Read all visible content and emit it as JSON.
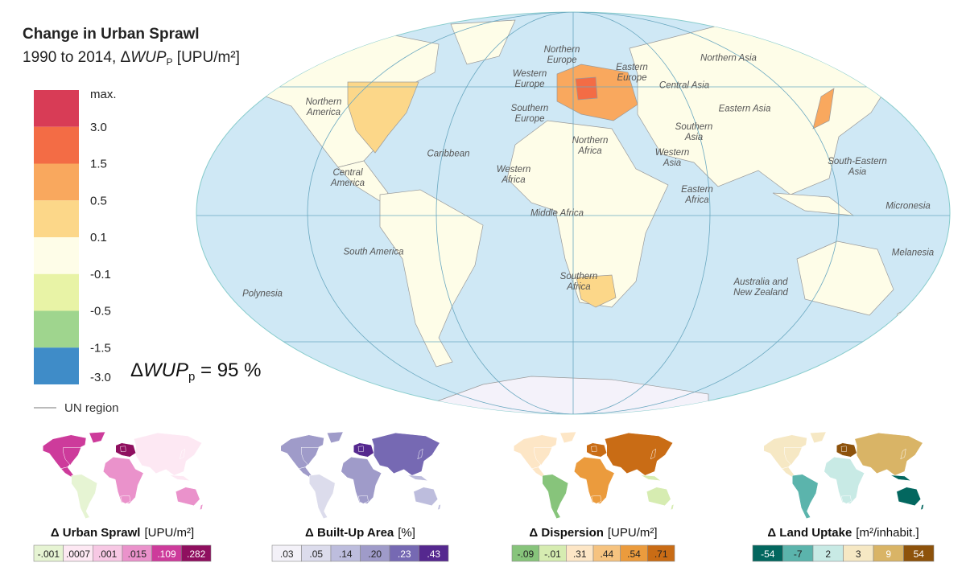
{
  "header": {
    "title": "Change in Urban Sprawl",
    "subtitle": [
      "1990 to 2014, Δ",
      "WUP",
      "P",
      " [UPU/m²]"
    ]
  },
  "legend": {
    "labels": [
      "max.",
      "3.0",
      "1.5",
      "0.5",
      "0.1",
      "-0.1",
      "-0.5",
      "-1.5",
      "-3.0"
    ],
    "colors": [
      "#d83c56",
      "#f36c45",
      "#f9a85e",
      "#fcd789",
      "#fefde8",
      "#e8f3a6",
      "#9fd58e",
      "#3f8cc8"
    ],
    "region_line_label": "UN region"
  },
  "summary": [
    "Δ",
    "WUP",
    "p",
    " = 95 %"
  ],
  "region_labels": [
    "Northern Europe",
    "Western Europe",
    "Eastern Europe",
    "Northern Asia",
    "Central Asia",
    "Northern America",
    "Southern Europe",
    "Eastern Asia",
    "Caribbean",
    "Northern Africa",
    "Southern Asia",
    "Western Asia",
    "South-Eastern Asia",
    "Central America",
    "Western Africa",
    "Eastern Africa",
    "Micronesia",
    "Middle Africa",
    "South America",
    "Melanesia",
    "Polynesia",
    "Southern Africa",
    "Australia and New Zealand"
  ],
  "panels": [
    {
      "title": "Δ Urban Sprawl",
      "unit": "[UPU/m²]",
      "scale": [
        "-.001",
        ".0007",
        ".001",
        ".015",
        ".109",
        ".282"
      ],
      "colors": [
        "#e6f4d3",
        "#fde8f3",
        "#f7c8e4",
        "#ea92cb",
        "#cd3b9b",
        "#8f0f5f"
      ]
    },
    {
      "title": "Δ Built-Up Area",
      "unit": "[%]",
      "scale": [
        ".03",
        ".05",
        ".14",
        ".20",
        ".23",
        ".43"
      ],
      "colors": [
        "#f3f1f8",
        "#dcdcec",
        "#bdbddd",
        "#9f9bc9",
        "#7669b3",
        "#55288f"
      ]
    },
    {
      "title": "Δ Dispersion",
      "unit": "[UPU/m²]",
      "scale": [
        "-.09",
        "-.01",
        ".31",
        ".44",
        ".54",
        ".71"
      ],
      "colors": [
        "#87c47b",
        "#d6ecb1",
        "#fde6c6",
        "#f6c380",
        "#eb9b3d",
        "#c96c15"
      ]
    },
    {
      "title": "Δ Land Uptake",
      "unit": "[m²/inhabit.]",
      "scale": [
        "-54",
        "-7",
        "2",
        "3",
        "9",
        "54"
      ],
      "colors": [
        "#03675f",
        "#5bb4ac",
        "#c8eae5",
        "#f6e8c4",
        "#d9b466",
        "#8d520b"
      ]
    }
  ]
}
